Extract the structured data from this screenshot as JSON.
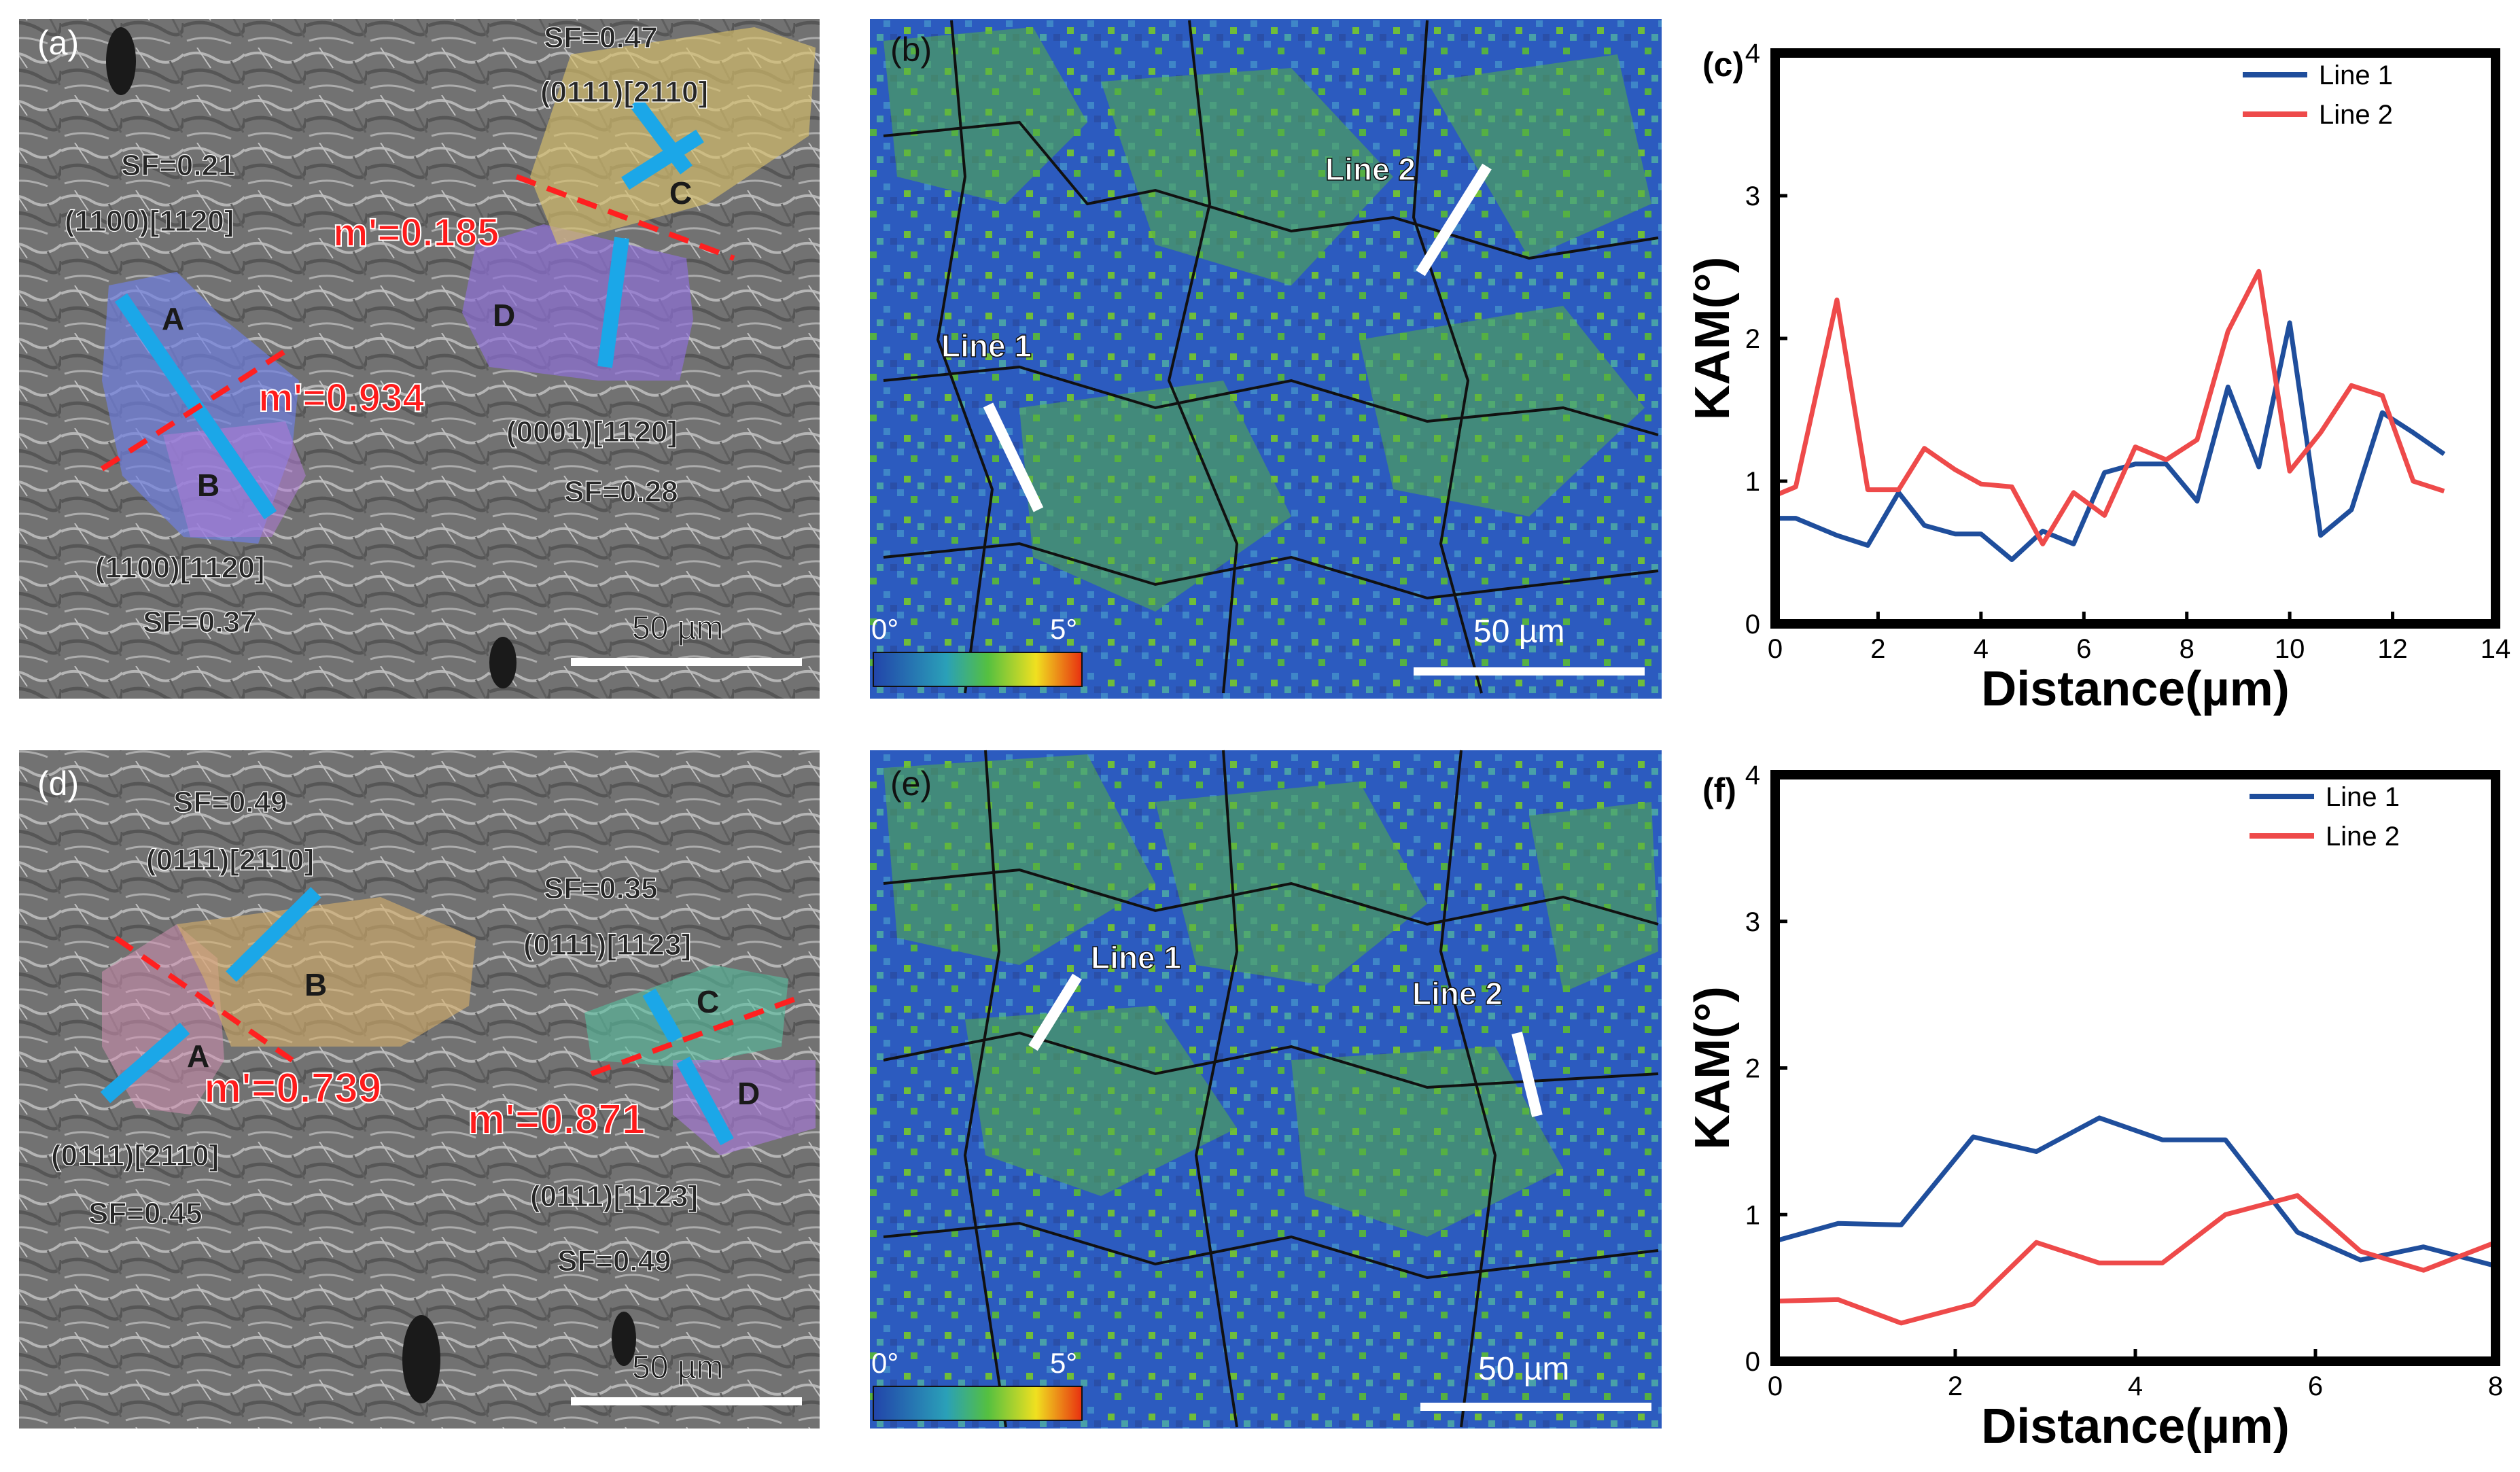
{
  "panels": {
    "a": {
      "label": "(a)",
      "scale_bar": "50 µm",
      "grain_labels": [
        "A",
        "B",
        "C",
        "D"
      ],
      "annotations": [
        "SF=0.47",
        "(0111)[2110]",
        "SF=0.21",
        "(1100)[1120]",
        "m'=0.185",
        "m'=0.934",
        "(0001)[1120]",
        "SF=0.28",
        "(1100)[1120]",
        "SF=0.37"
      ]
    },
    "b": {
      "label": "(b)",
      "line_labels": [
        "Line 1",
        "Line 2"
      ],
      "scale_bar": "50 µm",
      "colorbar_min": "0°",
      "colorbar_max": "5°"
    },
    "d": {
      "label": "(d)",
      "scale_bar": "50 µm",
      "grain_labels": [
        "A",
        "B",
        "C",
        "D"
      ],
      "annotations": [
        "SF=0.49",
        "(0111)[2110]",
        "SF=0.35",
        "(0111)[1123]",
        "m'=0.739",
        "m'=0.871",
        "(0111)[2110]",
        "SF=0.45",
        "(0111)[1123]",
        "SF=0.49"
      ]
    },
    "e": {
      "label": "(e)",
      "line_labels": [
        "Line 1",
        "Line 2"
      ],
      "scale_bar": "50 µm",
      "colorbar_min": "0°",
      "colorbar_max": "5°"
    }
  },
  "colors": {
    "line1": "#1f4e9c",
    "line2": "#ee4a4a",
    "ebsd_blue": "#2c5bbf",
    "ebsd_green": "#55b043",
    "annotation_red": "#ff2020"
  },
  "chart_data": [
    {
      "panel": "(c)",
      "type": "line",
      "xlabel": "Distance(µm)",
      "ylabel": "KAM(°)",
      "xlim": [
        0,
        14
      ],
      "ylim": [
        0,
        4
      ],
      "xticks": [
        0,
        2,
        4,
        6,
        8,
        10,
        12,
        14
      ],
      "yticks": [
        0,
        1,
        2,
        3,
        4
      ],
      "legend_position": "top-right",
      "series": [
        {
          "name": "Line 1",
          "color": "#1f4e9c",
          "x": [
            0,
            0.4,
            1.2,
            1.8,
            2.4,
            2.9,
            3.5,
            4.0,
            4.6,
            5.2,
            5.8,
            6.4,
            7.0,
            7.6,
            8.2,
            8.8,
            9.4,
            10.0,
            10.6,
            11.2,
            11.8,
            12.4,
            13.0
          ],
          "y": [
            0.74,
            0.74,
            0.62,
            0.55,
            0.92,
            0.69,
            0.63,
            0.63,
            0.45,
            0.65,
            0.56,
            1.06,
            1.12,
            1.12,
            0.86,
            1.66,
            1.1,
            2.11,
            0.62,
            0.8,
            1.48,
            1.34,
            1.19
          ]
        },
        {
          "name": "Line 2",
          "color": "#ee4a4a",
          "x": [
            0,
            0.4,
            1.2,
            1.8,
            2.4,
            2.9,
            3.5,
            4.0,
            4.6,
            5.2,
            5.8,
            6.4,
            7.0,
            7.6,
            8.2,
            8.8,
            9.4,
            10.0,
            10.6,
            11.2,
            11.8,
            12.4,
            13.0
          ],
          "y": [
            0.9,
            0.96,
            2.27,
            0.94,
            0.94,
            1.23,
            1.08,
            0.98,
            0.96,
            0.56,
            0.92,
            0.76,
            1.24,
            1.15,
            1.29,
            2.05,
            2.47,
            1.07,
            1.34,
            1.67,
            1.6,
            1.0,
            0.93
          ]
        }
      ]
    },
    {
      "panel": "(f)",
      "type": "line",
      "xlabel": "Distance(µm)",
      "ylabel": "KAM(°)",
      "xlim": [
        0,
        8
      ],
      "ylim": [
        0,
        4
      ],
      "xticks": [
        0,
        2,
        4,
        6,
        8
      ],
      "yticks": [
        0,
        1,
        2,
        3,
        4
      ],
      "legend_position": "top-right",
      "series": [
        {
          "name": "Line 1",
          "color": "#1f4e9c",
          "x": [
            0,
            0.7,
            1.4,
            2.2,
            2.9,
            3.6,
            4.3,
            5.0,
            5.8,
            6.5,
            7.2,
            8.0
          ],
          "y": [
            0.82,
            0.94,
            0.93,
            1.53,
            1.43,
            1.66,
            1.51,
            1.51,
            0.88,
            0.69,
            0.78,
            0.65
          ]
        },
        {
          "name": "Line 2",
          "color": "#ee4a4a",
          "x": [
            0,
            0.7,
            1.4,
            2.2,
            2.9,
            3.6,
            4.3,
            5.0,
            5.8,
            6.5,
            7.2,
            8.0
          ],
          "y": [
            0.41,
            0.42,
            0.26,
            0.39,
            0.81,
            0.67,
            0.67,
            1.0,
            1.13,
            0.75,
            0.62,
            0.81
          ]
        }
      ]
    }
  ]
}
